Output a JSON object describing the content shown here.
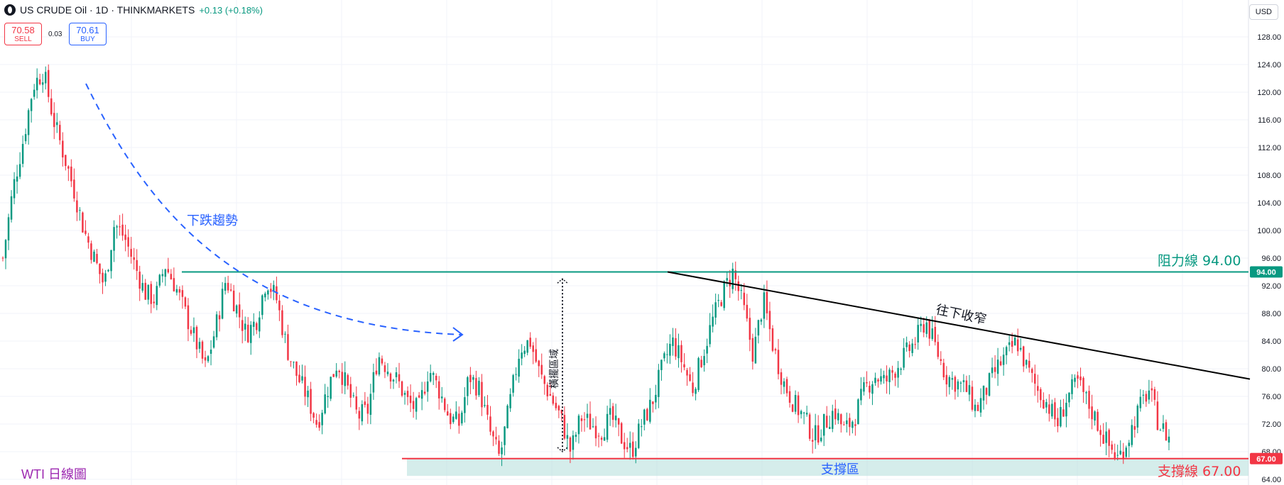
{
  "header": {
    "symbol": "US CRUDE Oil · 1D · THINKMARKETS",
    "change": "+0.13 (+0.18%)"
  },
  "trade": {
    "sell_price": "70.58",
    "sell_label": "SELL",
    "spread": "0.03",
    "buy_price": "70.61",
    "buy_label": "BUY"
  },
  "currency": "USD",
  "chart_label": "WTI 日線圖",
  "chart_data": {
    "type": "candlestick",
    "y_axis": {
      "ticks": [
        64,
        68,
        72,
        76,
        80,
        84,
        88,
        92,
        96,
        100,
        104,
        108,
        112,
        116,
        120,
        124,
        128
      ],
      "range": [
        63,
        131
      ]
    },
    "close_path": [
      96,
      106,
      113,
      121,
      123,
      116,
      111,
      106,
      100,
      96,
      92,
      101,
      99,
      95,
      91,
      90,
      95,
      92,
      88,
      84,
      80,
      86,
      93,
      89,
      85,
      87,
      93,
      90,
      83,
      79,
      76,
      72,
      77,
      81,
      77,
      73,
      74,
      82,
      80,
      78,
      75,
      74,
      80,
      77,
      73,
      72,
      79,
      77,
      71,
      67,
      75,
      83,
      84,
      79,
      76,
      73,
      68,
      73,
      72,
      71,
      73,
      70,
      68,
      72,
      75,
      80,
      84,
      81,
      77,
      82,
      87,
      91,
      94,
      89,
      82,
      90,
      83,
      78,
      75,
      73,
      70,
      72,
      74,
      71,
      73,
      77,
      79,
      78,
      80,
      82,
      84,
      87,
      83,
      79,
      78,
      77,
      74,
      77,
      80,
      82,
      84,
      80,
      77,
      75,
      72,
      76,
      78,
      75,
      72,
      69,
      67,
      70,
      74,
      77,
      72,
      70
    ],
    "annotations": [
      {
        "text": "下跌趨勢",
        "color": "#2962ff"
      },
      {
        "text": "橫擺區域",
        "color": "#131722"
      },
      {
        "text": "往下收窄",
        "color": "#131722"
      },
      {
        "text": "支撐區",
        "color": "#2962ff"
      },
      {
        "text": "阻力線 94.00",
        "color": "#089981"
      },
      {
        "text": "支撐線 67.00",
        "color": "#f23645"
      }
    ],
    "resistance": {
      "value": 94.0,
      "label": "94.00",
      "color": "#089981"
    },
    "support": {
      "value": 67.0,
      "label": "67.00",
      "color": "#f23645"
    },
    "support_zone": [
      64.5,
      67.0
    ],
    "last_price": 70.61,
    "trendline": {
      "from_price": 94.0,
      "to_price": 78.5,
      "color": "#000000"
    },
    "colors": {
      "up": "#089981",
      "down": "#f23645",
      "trend_arrow": "#2962ff"
    }
  }
}
